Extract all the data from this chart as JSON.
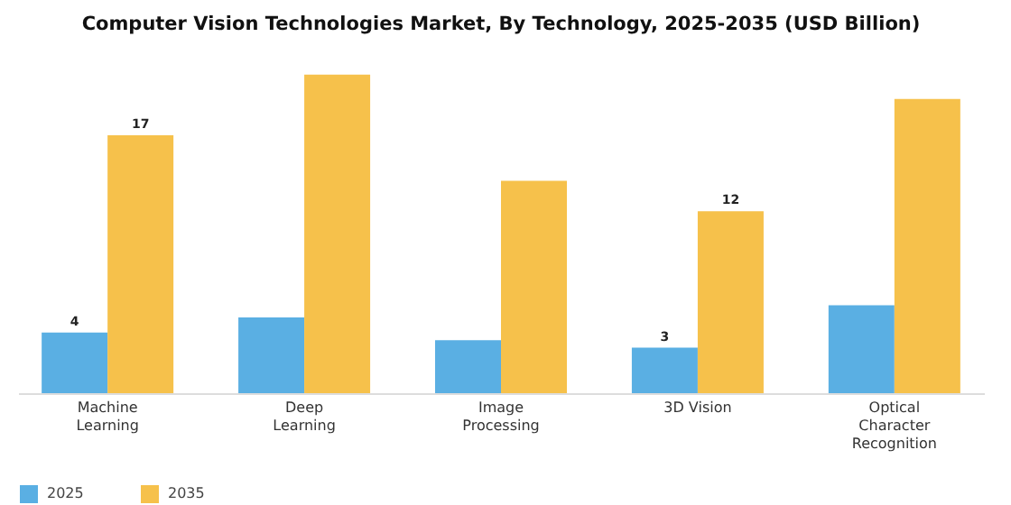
{
  "chart_data": {
    "type": "bar",
    "title": "Computer Vision Technologies Market, By Technology, 2025-2035 (USD Billion)",
    "categories": [
      "Machine Learning",
      "Deep Learning",
      "Image Processing",
      "3D Vision",
      "Optical Character Recognition"
    ],
    "series": [
      {
        "name": "2025",
        "color": "#5aafe3",
        "values": [
          4,
          5,
          3.5,
          3,
          5.8
        ],
        "value_labels": [
          "4",
          null,
          null,
          "3",
          null
        ]
      },
      {
        "name": "2035",
        "color": "#f6c14b",
        "values": [
          17,
          21,
          14,
          12,
          19.4
        ],
        "value_labels": [
          "17",
          null,
          null,
          "12",
          null
        ]
      }
    ],
    "legend": "bottom",
    "grid": false
  }
}
